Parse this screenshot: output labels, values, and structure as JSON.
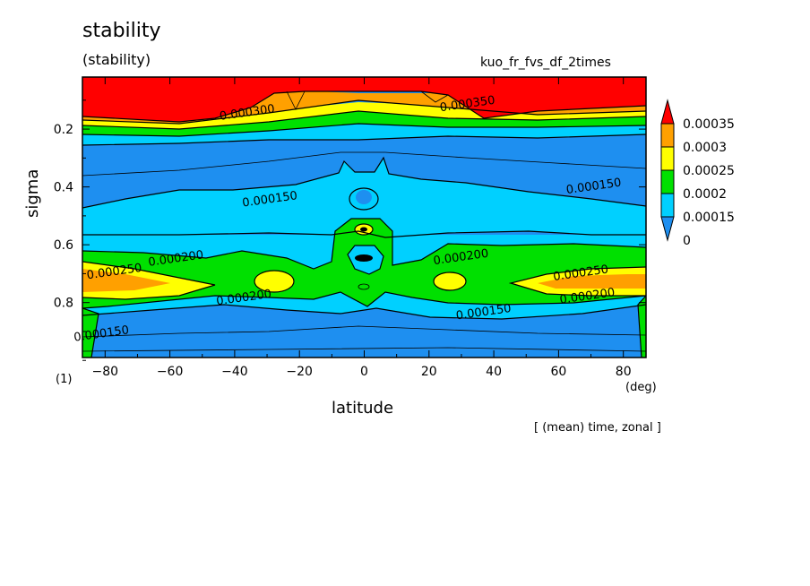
{
  "chart_data": {
    "type": "heatmap",
    "title": "stability",
    "subtitle": "(stability)",
    "run_name": "kuo_fr_fvs_df_2times",
    "xlabel": "latitude",
    "ylabel": "sigma",
    "x_unit": "(deg)",
    "y_unit": "(1)",
    "note": "[ (mean) time, zonal ]",
    "xlim": [
      -87,
      87
    ],
    "ylim": [
      0.02,
      0.99
    ],
    "y_inverted": true,
    "x_ticks": [
      -80,
      -60,
      -40,
      -20,
      0,
      20,
      40,
      60,
      80
    ],
    "x_tick_labels": [
      "−80",
      "−60",
      "−40",
      "−20",
      "0",
      "20",
      "40",
      "60",
      "80"
    ],
    "y_ticks": [
      0.2,
      0.4,
      0.6,
      0.8
    ],
    "y_tick_labels": [
      "0.2",
      "0.4",
      "0.6",
      "0.8"
    ],
    "colorbar": {
      "levels": [
        0,
        0.00015,
        0.0002,
        0.00025,
        0.0003,
        0.00035
      ],
      "labels": [
        "0",
        "0.00015",
        "0.0002",
        "0.00025",
        "0.0003",
        "0.00035"
      ],
      "colors": [
        "#1e8ff0",
        "#00d0ff",
        "#00e000",
        "#ffff00",
        "#ffa000",
        "#ff0000"
      ]
    },
    "contour_labels": [
      {
        "text": "0.000300",
        "x": -36,
        "y": 0.155
      },
      {
        "text": "0.000350",
        "x": 32,
        "y": 0.125
      },
      {
        "text": "0.000150",
        "x": -29,
        "y": 0.455
      },
      {
        "text": "0.000150",
        "x": 71,
        "y": 0.41
      },
      {
        "text": "0.000200",
        "x": -58,
        "y": 0.66
      },
      {
        "text": "0.000200",
        "x": 30,
        "y": 0.655
      },
      {
        "text": "0.000250",
        "x": -77,
        "y": 0.705
      },
      {
        "text": "0.000250",
        "x": 67,
        "y": 0.71
      },
      {
        "text": "0.000200",
        "x": -37,
        "y": 0.795
      },
      {
        "text": "0.000200",
        "x": 69,
        "y": 0.79
      },
      {
        "text": "0.000150",
        "x": -81,
        "y": 0.92
      },
      {
        "text": "0.000150",
        "x": 37,
        "y": 0.845
      }
    ]
  }
}
